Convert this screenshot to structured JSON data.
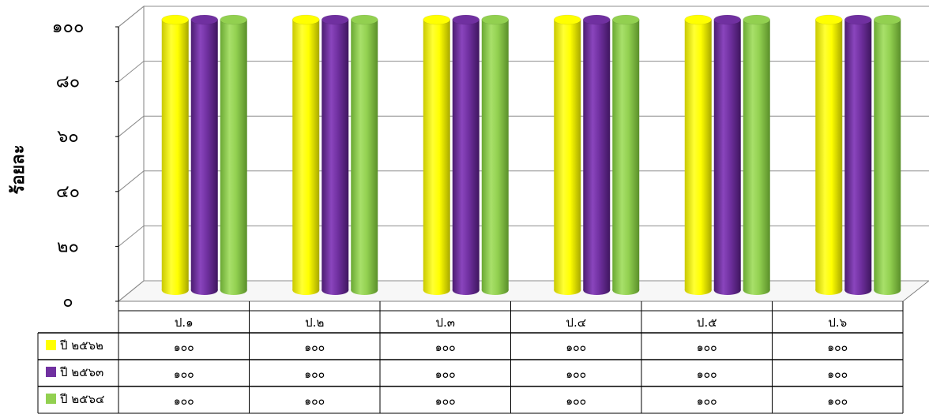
{
  "chart_data": {
    "type": "bar",
    "ylabel": "ร้อยละ",
    "ylim": [
      0,
      100
    ],
    "yticks": [
      "๐",
      "๒๐",
      "๔๐",
      "๖๐",
      "๘๐",
      "๑๐๐"
    ],
    "categories": [
      "ป.๑",
      "ป.๒",
      "ป.๓",
      "ป.๔",
      "ป.๕",
      "ป.๖"
    ],
    "series": [
      {
        "name": "ปี ๒๕๖๒",
        "color": "#ffff00",
        "values": [
          100,
          100,
          100,
          100,
          100,
          100
        ],
        "labels": [
          "๑๐๐",
          "๑๐๐",
          "๑๐๐",
          "๑๐๐",
          "๑๐๐",
          "๑๐๐"
        ]
      },
      {
        "name": "ปี ๒๕๖๓",
        "color": "#7030a0",
        "values": [
          100,
          100,
          100,
          100,
          100,
          100
        ],
        "labels": [
          "๑๐๐",
          "๑๐๐",
          "๑๐๐",
          "๑๐๐",
          "๑๐๐",
          "๑๐๐"
        ]
      },
      {
        "name": "ปี ๒๕๖๔",
        "color": "#92d050",
        "values": [
          100,
          100,
          100,
          100,
          100,
          100
        ],
        "labels": [
          "๑๐๐",
          "๑๐๐",
          "๑๐๐",
          "๑๐๐",
          "๑๐๐",
          "๑๐๐"
        ]
      }
    ],
    "grid": true,
    "legend": "data-table"
  }
}
